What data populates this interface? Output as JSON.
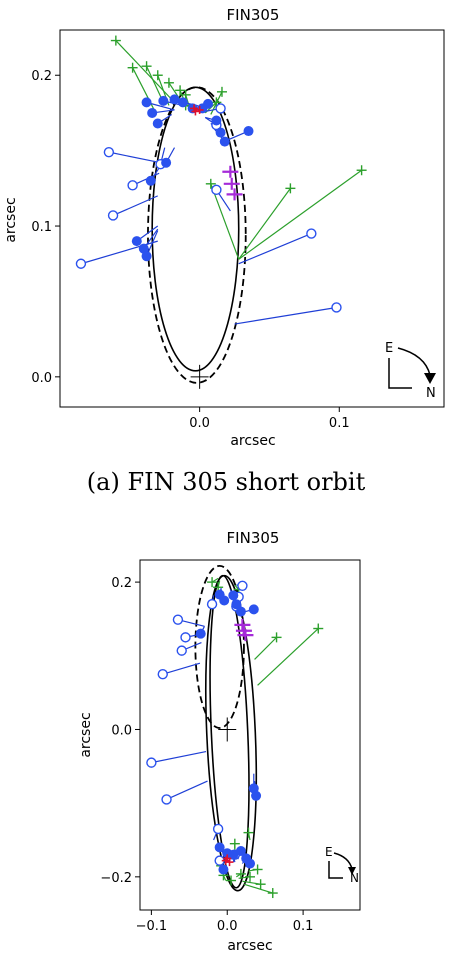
{
  "caption": "(a) FIN 305 short orbit",
  "colors": {
    "residual_green": "#2ca02c",
    "residual_blue": "#1f3fd6",
    "obs_blue": "#2b52ee",
    "magenta": "#a52bd8",
    "red": "#e0112c",
    "black": "#000000"
  },
  "chart_data": [
    {
      "type": "scatter",
      "title": "FIN305",
      "xlabel": "arcsec",
      "ylabel": "arcsec",
      "xlim": [
        -0.1,
        0.175
      ],
      "ylim": [
        -0.02,
        0.23
      ],
      "xticks": [
        0.0,
        0.1
      ],
      "xtick_labels": [
        "0.0",
        "0.1"
      ],
      "yticks": [
        0.0,
        0.1,
        0.2
      ],
      "ytick_labels": [
        "0.0",
        "0.1",
        "0.2"
      ],
      "grid": false,
      "compass": {
        "e": "E",
        "n": "N",
        "position": "bottom-right"
      },
      "orbits": [
        {
          "style": "solid",
          "cx": -0.003,
          "cy": 0.098,
          "rx": 0.031,
          "ry": 0.094
        },
        {
          "style": "dashed",
          "cx": -0.002,
          "cy": 0.094,
          "rx": 0.035,
          "ry": 0.098
        }
      ],
      "origin_cross": [
        0,
        0
      ],
      "filled_obs": [
        {
          "obs": [
            -0.038,
            0.182
          ],
          "model": [
            -0.018,
            0.177
          ]
        },
        {
          "obs": [
            -0.034,
            0.175
          ],
          "model": [
            -0.018,
            0.177
          ]
        },
        {
          "obs": [
            -0.026,
            0.183
          ],
          "model": [
            -0.012,
            0.18
          ]
        },
        {
          "obs": [
            -0.018,
            0.184
          ],
          "model": [
            -0.005,
            0.18
          ]
        },
        {
          "obs": [
            -0.012,
            0.182
          ],
          "model": [
            -0.002,
            0.18
          ]
        },
        {
          "obs": [
            -0.005,
            0.178
          ],
          "model": [
            -0.002,
            0.18
          ]
        },
        {
          "obs": [
            0.002,
            0.178
          ],
          "model": [
            -0.002,
            0.18
          ]
        },
        {
          "obs": [
            0.006,
            0.181
          ],
          "model": [
            0.002,
            0.178
          ]
        },
        {
          "obs": [
            0.012,
            0.17
          ],
          "model": [
            0.004,
            0.172
          ]
        },
        {
          "obs": [
            0.015,
            0.162
          ],
          "model": [
            0.008,
            0.168
          ]
        },
        {
          "obs": [
            0.018,
            0.156
          ],
          "model": [
            0.01,
            0.165
          ]
        },
        {
          "obs": [
            0.035,
            0.163
          ],
          "model": [
            0.015,
            0.155
          ]
        },
        {
          "obs": [
            -0.024,
            0.142
          ],
          "model": [
            -0.018,
            0.152
          ]
        },
        {
          "obs": [
            -0.045,
            0.09
          ],
          "model": [
            -0.03,
            0.1
          ]
        },
        {
          "obs": [
            -0.04,
            0.085
          ],
          "model": [
            -0.03,
            0.098
          ]
        },
        {
          "obs": [
            -0.038,
            0.08
          ],
          "model": [
            -0.03,
            0.097
          ]
        },
        {
          "obs": [
            -0.03,
            0.168
          ],
          "model": [
            -0.02,
            0.174
          ]
        },
        {
          "obs": [
            -0.035,
            0.13
          ],
          "model": [
            -0.028,
            0.14
          ]
        }
      ],
      "open_obs": [
        {
          "obs": [
            -0.085,
            0.075
          ],
          "model": [
            -0.03,
            0.09
          ]
        },
        {
          "obs": [
            -0.065,
            0.149
          ],
          "model": [
            -0.028,
            0.142
          ]
        },
        {
          "obs": [
            -0.048,
            0.127
          ],
          "model": [
            -0.029,
            0.135
          ]
        },
        {
          "obs": [
            -0.062,
            0.107
          ],
          "model": [
            -0.03,
            0.12
          ]
        },
        {
          "obs": [
            -0.028,
            0.141
          ],
          "model": [
            -0.025,
            0.152
          ]
        },
        {
          "obs": [
            0.08,
            0.095
          ],
          "model": [
            0.028,
            0.075
          ]
        },
        {
          "obs": [
            0.098,
            0.046
          ],
          "model": [
            0.025,
            0.035
          ]
        },
        {
          "obs": [
            0.012,
            0.167
          ],
          "model": [
            0.004,
            0.172
          ]
        },
        {
          "obs": [
            0.012,
            0.124
          ],
          "model": [
            0.022,
            0.11
          ]
        },
        {
          "obs": [
            0.015,
            0.178
          ],
          "model": [
            0.004,
            0.176
          ]
        }
      ],
      "plus_obs": [
        {
          "obs": [
            -0.06,
            0.223
          ],
          "model": [
            -0.018,
            0.182
          ]
        },
        {
          "obs": [
            -0.048,
            0.205
          ],
          "model": [
            -0.032,
            0.176
          ]
        },
        {
          "obs": [
            -0.038,
            0.206
          ],
          "model": [
            -0.025,
            0.18
          ]
        },
        {
          "obs": [
            -0.03,
            0.2
          ],
          "model": [
            -0.022,
            0.18
          ]
        },
        {
          "obs": [
            -0.022,
            0.195
          ],
          "model": [
            -0.012,
            0.181
          ]
        },
        {
          "obs": [
            -0.014,
            0.19
          ],
          "model": [
            -0.01,
            0.181
          ]
        },
        {
          "obs": [
            -0.01,
            0.187
          ],
          "model": [
            -0.008,
            0.181
          ]
        },
        {
          "obs": [
            0.012,
            0.182
          ],
          "model": [
            0.004,
            0.175
          ]
        },
        {
          "obs": [
            0.016,
            0.189
          ],
          "model": [
            0.008,
            0.174
          ]
        },
        {
          "obs": [
            0.116,
            0.137
          ],
          "model": [
            0.028,
            0.078
          ]
        },
        {
          "obs": [
            0.065,
            0.125
          ],
          "model": [
            0.028,
            0.078
          ]
        },
        {
          "obs": [
            0.008,
            0.128
          ],
          "model": [
            0.028,
            0.078
          ]
        },
        {
          "obs": [
            -0.01,
            0.18
          ],
          "model": [
            -0.004,
            0.178
          ]
        }
      ],
      "magenta_marks": [
        [
          0.022,
          0.136
        ],
        [
          0.023,
          0.128
        ],
        [
          0.025,
          0.121
        ]
      ],
      "red_marks": [
        [
          -0.004,
          0.178
        ],
        [
          -0.003,
          0.176
        ],
        [
          0.0,
          0.177
        ]
      ]
    },
    {
      "type": "scatter",
      "title": "FIN305",
      "xlabel": "arcsec",
      "ylabel": "arcsec",
      "xlim": [
        -0.115,
        0.175
      ],
      "ylim": [
        -0.245,
        0.23
      ],
      "xticks": [
        -0.1,
        0.0,
        0.1
      ],
      "xtick_labels": [
        "−0.1",
        "0.0",
        "0.1"
      ],
      "yticks": [
        -0.2,
        0.0,
        0.2
      ],
      "ytick_labels": [
        "−0.2",
        "0.0",
        "0.2"
      ],
      "grid": false,
      "compass": {
        "e": "E",
        "n": "N",
        "position": "bottom-right"
      },
      "orbits": [
        {
          "style": "solid",
          "cx": 0.005,
          "cy": -0.005,
          "rx": 0.032,
          "ry": 0.214,
          "rot": -2.5
        },
        {
          "style": "solid",
          "cx": 0.003,
          "cy": -0.003,
          "rx": 0.024,
          "ry": 0.212,
          "rot": -2.5
        },
        {
          "style": "dashed",
          "cx": -0.01,
          "cy": 0.112,
          "rx": 0.032,
          "ry": 0.11
        }
      ],
      "origin_cross": [
        0,
        0
      ],
      "filled_obs": [
        {
          "obs": [
            -0.01,
            0.183
          ],
          "model": [
            -0.008,
            0.192
          ]
        },
        {
          "obs": [
            -0.004,
            0.175
          ],
          "model": [
            -0.008,
            0.19
          ]
        },
        {
          "obs": [
            0.008,
            0.182
          ],
          "model": [
            0.004,
            0.19
          ]
        },
        {
          "obs": [
            0.012,
            0.17
          ],
          "model": [
            0.01,
            0.18
          ]
        },
        {
          "obs": [
            0.018,
            0.16
          ],
          "model": [
            0.014,
            0.17
          ]
        },
        {
          "obs": [
            0.035,
            0.163
          ],
          "model": [
            0.024,
            0.16
          ]
        },
        {
          "obs": [
            -0.035,
            0.13
          ],
          "model": [
            -0.03,
            0.14
          ]
        },
        {
          "obs": [
            0.035,
            -0.08
          ],
          "model": [
            0.035,
            -0.06
          ]
        },
        {
          "obs": [
            0.038,
            -0.09
          ],
          "model": [
            0.036,
            -0.07
          ]
        },
        {
          "obs": [
            -0.01,
            -0.16
          ],
          "model": [
            -0.004,
            -0.17
          ]
        },
        {
          "obs": [
            0.0,
            -0.168
          ],
          "model": [
            0.004,
            -0.178
          ]
        },
        {
          "obs": [
            0.008,
            -0.17
          ],
          "model": [
            0.01,
            -0.18
          ]
        },
        {
          "obs": [
            0.018,
            -0.165
          ],
          "model": [
            0.014,
            -0.176
          ]
        },
        {
          "obs": [
            0.025,
            -0.175
          ],
          "model": [
            0.02,
            -0.182
          ]
        },
        {
          "obs": [
            0.03,
            -0.182
          ],
          "model": [
            0.024,
            -0.186
          ]
        },
        {
          "obs": [
            -0.005,
            -0.19
          ],
          "model": [
            0.0,
            -0.196
          ]
        }
      ],
      "open_obs": [
        {
          "obs": [
            -0.065,
            0.149
          ],
          "model": [
            -0.03,
            0.14
          ]
        },
        {
          "obs": [
            -0.055,
            0.125
          ],
          "model": [
            -0.032,
            0.13
          ]
        },
        {
          "obs": [
            -0.06,
            0.107
          ],
          "model": [
            -0.034,
            0.118
          ]
        },
        {
          "obs": [
            -0.085,
            0.075
          ],
          "model": [
            -0.036,
            0.09
          ]
        },
        {
          "obs": [
            -0.1,
            -0.045
          ],
          "model": [
            -0.028,
            -0.03
          ]
        },
        {
          "obs": [
            -0.08,
            -0.095
          ],
          "model": [
            -0.026,
            -0.07
          ]
        },
        {
          "obs": [
            -0.012,
            -0.135
          ],
          "model": [
            -0.018,
            -0.15
          ]
        },
        {
          "obs": [
            -0.01,
            -0.178
          ],
          "model": [
            -0.01,
            -0.186
          ]
        },
        {
          "obs": [
            0.01,
            -0.17
          ],
          "model": [
            0.008,
            -0.18
          ]
        },
        {
          "obs": [
            0.012,
            0.167
          ],
          "model": [
            0.008,
            0.176
          ]
        },
        {
          "obs": [
            0.015,
            0.18
          ],
          "model": [
            0.01,
            0.186
          ]
        },
        {
          "obs": [
            0.02,
            0.195
          ],
          "model": [
            0.012,
            0.196
          ]
        },
        {
          "obs": [
            -0.02,
            0.17
          ],
          "model": [
            -0.018,
            0.182
          ]
        }
      ],
      "plus_obs": [
        {
          "obs": [
            -0.02,
            0.2
          ],
          "model": [
            -0.012,
            0.205
          ]
        },
        {
          "obs": [
            -0.012,
            0.193
          ],
          "model": [
            -0.01,
            0.202
          ]
        },
        {
          "obs": [
            0.015,
            0.19
          ],
          "model": [
            0.01,
            0.196
          ]
        },
        {
          "obs": [
            0.065,
            0.125
          ],
          "model": [
            0.036,
            0.095
          ]
        },
        {
          "obs": [
            0.12,
            0.137
          ],
          "model": [
            0.04,
            0.06
          ]
        },
        {
          "obs": [
            0.06,
            -0.222
          ],
          "model": [
            0.022,
            -0.21
          ]
        },
        {
          "obs": [
            0.044,
            -0.21
          ],
          "model": [
            0.02,
            -0.206
          ]
        },
        {
          "obs": [
            0.03,
            -0.2
          ],
          "model": [
            0.015,
            -0.202
          ]
        },
        {
          "obs": [
            0.018,
            -0.196
          ],
          "model": [
            0.012,
            -0.2
          ]
        },
        {
          "obs": [
            0.005,
            -0.205
          ],
          "model": [
            0.005,
            -0.21
          ]
        },
        {
          "obs": [
            -0.005,
            -0.198
          ],
          "model": [
            -0.002,
            -0.205
          ]
        },
        {
          "obs": [
            0.04,
            -0.19
          ],
          "model": [
            0.028,
            -0.192
          ]
        },
        {
          "obs": [
            0.01,
            -0.155
          ],
          "model": [
            0.01,
            -0.17
          ]
        },
        {
          "obs": [
            -0.008,
            -0.185
          ],
          "model": [
            -0.004,
            -0.19
          ]
        },
        {
          "obs": [
            0.028,
            -0.14
          ],
          "model": [
            0.03,
            -0.15
          ]
        }
      ],
      "magenta_marks": [
        [
          0.02,
          0.142
        ],
        [
          0.022,
          0.134
        ],
        [
          0.024,
          0.128
        ]
      ],
      "red_marks": [
        [
          -0.002,
          -0.178
        ],
        [
          0.0,
          -0.175
        ],
        [
          0.003,
          -0.18
        ]
      ]
    }
  ]
}
